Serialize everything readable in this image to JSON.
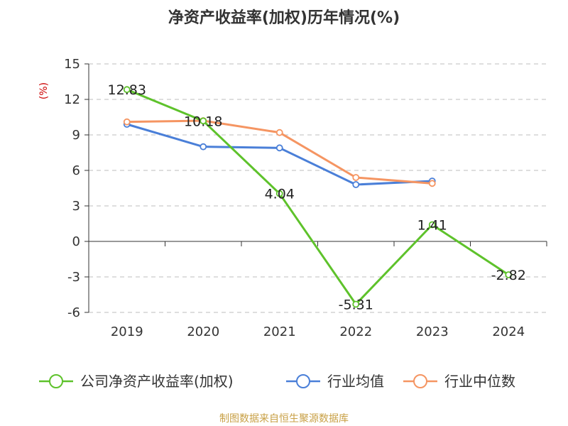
{
  "chart_data": {
    "type": "line",
    "title": "净资产收益率(加权)历年情况(%)",
    "ylabel": "(%)",
    "xlabel": "",
    "categories": [
      "2019",
      "2020",
      "2021",
      "2022",
      "2023",
      "2024"
    ],
    "ylim": [
      -6,
      15
    ],
    "yticks": [
      15,
      12,
      9,
      6,
      3,
      0,
      -3,
      -6
    ],
    "grid": true,
    "legend_position": "bottom",
    "series": [
      {
        "name": "公司净资产收益率(加权)",
        "color": "#5ec22b",
        "values": [
          12.83,
          10.18,
          4.04,
          -5.31,
          1.41,
          -2.82
        ],
        "labels": [
          "12.83",
          "10.18",
          "4.04",
          "-5.31",
          "1.41",
          "-2.82"
        ]
      },
      {
        "name": "行业均值",
        "color": "#4a7fd8",
        "values": [
          9.9,
          8.0,
          7.9,
          4.8,
          5.1,
          null
        ]
      },
      {
        "name": "行业中位数",
        "color": "#f59562",
        "values": [
          10.1,
          10.2,
          9.2,
          5.4,
          4.9,
          null
        ]
      }
    ],
    "source": "制图数据来自恒生聚源数据库"
  }
}
